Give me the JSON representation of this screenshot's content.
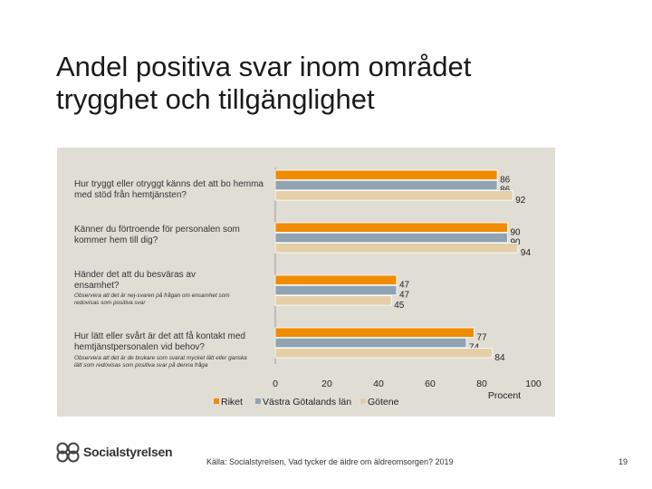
{
  "title_line1": "Andel positiva svar inom området",
  "title_line2": "trygghet och tillgänglighet",
  "source": "Källa: Socialstyrelsen, Vad tycker de äldre om äldreomsorgen? 2019",
  "page_number": "19",
  "logo_text": "Socialstyrelsen",
  "colors": {
    "riket": "#f08c00",
    "vastra": "#8fa3b2",
    "gotene": "#e4cfa8",
    "panel": "#e0ddd5"
  },
  "chart_data": {
    "type": "bar",
    "orientation": "horizontal",
    "xlabel": "Procent",
    "xlim": [
      0,
      100
    ],
    "ticks": [
      0,
      20,
      40,
      60,
      80,
      100
    ],
    "categories": [
      {
        "label": "Hur tryggt eller otryggt känns det att bo hemma med stöd från hemtjänsten?",
        "note": ""
      },
      {
        "label": "Känner du förtroende för personalen som kommer hem till dig?",
        "note": ""
      },
      {
        "label": "Händer det att du besväras av ensamhet?",
        "note": "Observera att det är nej-svaren på frågan om ensamhet som redovisas som positiva svar"
      },
      {
        "label": "Hur lätt eller svårt är det att få kontakt med hemtjänstpersonalen vid behov?",
        "note": "Observera att det är de brukare som svarat mycket lätt eller ganska lätt som redovisas som positiva svar på denna fråga"
      }
    ],
    "series": [
      {
        "name": "Riket",
        "values": [
          86,
          90,
          47,
          77
        ]
      },
      {
        "name": "Västra Götalands län",
        "values": [
          86,
          90,
          47,
          74
        ]
      },
      {
        "name": "Götene",
        "values": [
          92,
          94,
          45,
          84
        ]
      }
    ]
  }
}
